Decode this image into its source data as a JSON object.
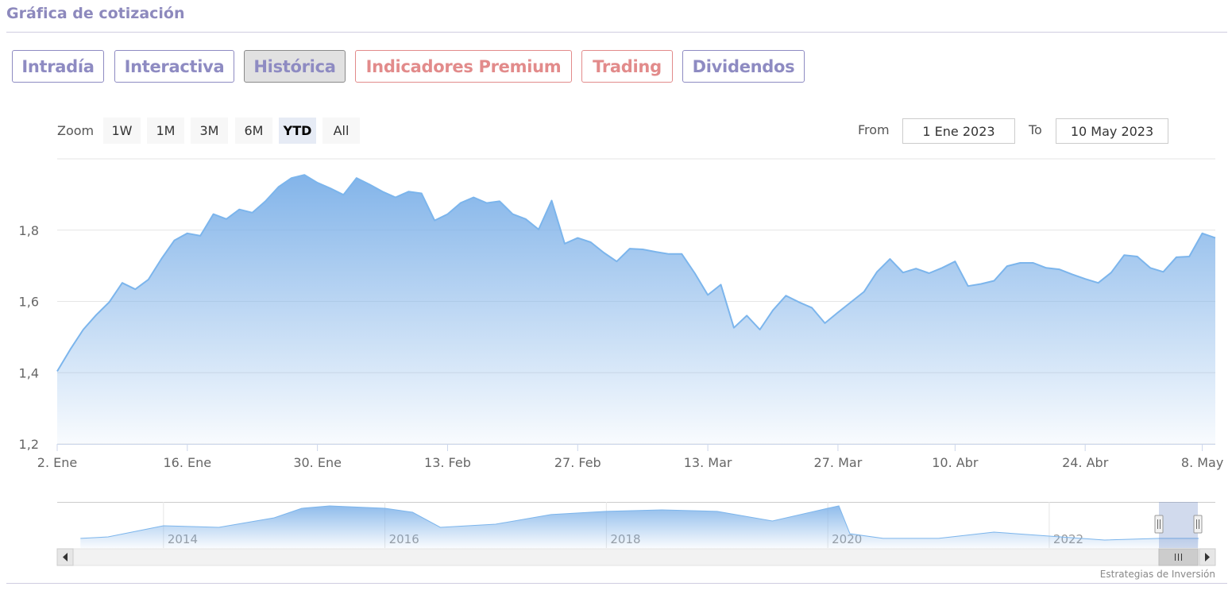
{
  "header": {
    "title": "Gráfica de cotización"
  },
  "tabs": [
    {
      "label": "Intradía"
    },
    {
      "label": "Interactiva"
    },
    {
      "label": "Histórica"
    },
    {
      "label": "Indicadores Premium"
    },
    {
      "label": "Trading"
    },
    {
      "label": "Dividendos"
    }
  ],
  "zoom": {
    "label": "Zoom",
    "buttons": [
      "1W",
      "1M",
      "3M",
      "6M",
      "YTD",
      "All"
    ],
    "selected": 4
  },
  "range": {
    "from_label": "From",
    "from": "1 Ene 2023",
    "to_label": "To",
    "to": "10 May 2023"
  },
  "chart_data": [
    {
      "type": "area",
      "color": "#7cb5ec",
      "grid": true,
      "x_scale": "ordinal",
      "x": [
        "2023-01-02",
        "2023-01-03",
        "2023-01-04",
        "2023-01-05",
        "2023-01-06",
        "2023-01-09",
        "2023-01-10",
        "2023-01-11",
        "2023-01-12",
        "2023-01-13",
        "2023-01-16",
        "2023-01-17",
        "2023-01-18",
        "2023-01-19",
        "2023-01-20",
        "2023-01-23",
        "2023-01-24",
        "2023-01-25",
        "2023-01-26",
        "2023-01-27",
        "2023-01-30",
        "2023-01-31",
        "2023-02-01",
        "2023-02-02",
        "2023-02-03",
        "2023-02-06",
        "2023-02-07",
        "2023-02-08",
        "2023-02-09",
        "2023-02-10",
        "2023-02-13",
        "2023-02-14",
        "2023-02-15",
        "2023-02-16",
        "2023-02-17",
        "2023-02-20",
        "2023-02-21",
        "2023-02-22",
        "2023-02-23",
        "2023-02-24",
        "2023-02-27",
        "2023-02-28",
        "2023-03-01",
        "2023-03-02",
        "2023-03-03",
        "2023-03-06",
        "2023-03-07",
        "2023-03-08",
        "2023-03-09",
        "2023-03-10",
        "2023-03-13",
        "2023-03-14",
        "2023-03-15",
        "2023-03-16",
        "2023-03-17",
        "2023-03-20",
        "2023-03-21",
        "2023-03-22",
        "2023-03-23",
        "2023-03-24",
        "2023-03-27",
        "2023-03-28",
        "2023-03-29",
        "2023-03-30",
        "2023-03-31",
        "2023-04-03",
        "2023-04-04",
        "2023-04-05",
        "2023-04-06",
        "2023-04-10",
        "2023-04-11",
        "2023-04-12",
        "2023-04-13",
        "2023-04-14",
        "2023-04-17",
        "2023-04-18",
        "2023-04-19",
        "2023-04-20",
        "2023-04-21",
        "2023-04-24",
        "2023-04-25",
        "2023-04-26",
        "2023-04-27",
        "2023-04-28",
        "2023-05-02",
        "2023-05-03",
        "2023-05-04",
        "2023-05-05",
        "2023-05-08",
        "2023-05-09"
      ],
      "values": [
        1.404,
        1.465,
        1.521,
        1.562,
        1.598,
        1.652,
        1.634,
        1.661,
        1.719,
        1.771,
        1.791,
        1.784,
        1.845,
        1.831,
        1.858,
        1.849,
        1.881,
        1.921,
        1.946,
        1.955,
        1.933,
        1.917,
        1.899,
        1.946,
        1.928,
        1.908,
        1.892,
        1.908,
        1.903,
        1.827,
        1.845,
        1.876,
        1.892,
        1.876,
        1.881,
        1.845,
        1.831,
        1.802,
        1.883,
        1.762,
        1.778,
        1.766,
        1.737,
        1.712,
        1.748,
        1.746,
        1.739,
        1.733,
        1.733,
        1.679,
        1.618,
        1.647,
        1.526,
        1.56,
        1.521,
        1.575,
        1.616,
        1.598,
        1.582,
        1.539,
        1.569,
        1.598,
        1.627,
        1.683,
        1.719,
        1.681,
        1.692,
        1.679,
        1.694,
        1.712,
        1.643,
        1.649,
        1.658,
        1.699,
        1.708,
        1.708,
        1.694,
        1.69,
        1.676,
        1.663,
        1.652,
        1.681,
        1.73,
        1.726,
        1.694,
        1.683,
        1.724,
        1.726,
        1.791,
        1.778
      ],
      "ylim": [
        1.2,
        2.0
      ],
      "yticks": [
        {
          "value": 1.2,
          "label": "1,2"
        },
        {
          "value": 1.4,
          "label": "1,4"
        },
        {
          "value": 1.6,
          "label": "1,6"
        },
        {
          "value": 1.8,
          "label": "1,8"
        }
      ],
      "xticks": [
        {
          "value": "2023-01-02",
          "label": "2. Ene"
        },
        {
          "value": "2023-01-16",
          "label": "16. Ene"
        },
        {
          "value": "2023-01-30",
          "label": "30. Ene"
        },
        {
          "value": "2023-02-13",
          "label": "13. Feb"
        },
        {
          "value": "2023-02-27",
          "label": "27. Feb"
        },
        {
          "value": "2023-03-13",
          "label": "13. Mar"
        },
        {
          "value": "2023-03-27",
          "label": "27. Mar"
        },
        {
          "value": "2023-04-10",
          "label": "10. Abr"
        },
        {
          "value": "2023-04-24",
          "label": "24. Abr"
        },
        {
          "value": "2023-05-08",
          "label": "8. May"
        }
      ]
    },
    {
      "type": "area",
      "color": "#7cb5ec",
      "x": [
        2013.25,
        2013.5,
        2014,
        2014.5,
        2015,
        2015.25,
        2015.5,
        2016,
        2016.25,
        2016.5,
        2017,
        2017.5,
        2018,
        2018.5,
        2019,
        2019.5,
        2020,
        2020.1,
        2020.2,
        2020.5,
        2021,
        2021.5,
        2022,
        2022.5,
        2023,
        2023.35
      ],
      "values": [
        1.75,
        1.9,
        2.99,
        2.84,
        3.77,
        4.71,
        4.94,
        4.71,
        4.32,
        2.84,
        3.15,
        4.09,
        4.4,
        4.55,
        4.4,
        3.46,
        4.71,
        4.94,
        2.21,
        1.75,
        1.75,
        2.37,
        1.98,
        1.59,
        1.75,
        1.75
      ],
      "xlim": [
        2013.04,
        2023.5
      ],
      "ylim": [
        0.81,
        5.33
      ],
      "xticks": [
        2014,
        2016,
        2018,
        2020,
        2022
      ]
    }
  ],
  "credit": "Estrategias de Inversión"
}
